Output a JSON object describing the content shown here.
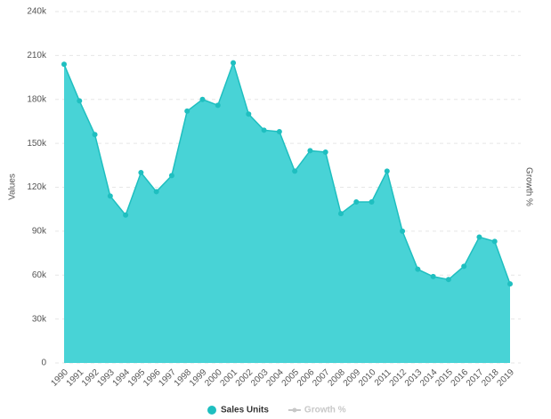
{
  "chart_data": {
    "type": "area",
    "ylabel": "Values",
    "y2label": "Growth %",
    "x": [
      "1990",
      "1991",
      "1992",
      "1993",
      "1994",
      "1995",
      "1996",
      "1997",
      "1998",
      "1999",
      "2000",
      "2001",
      "2002",
      "2003",
      "2004",
      "2005",
      "2006",
      "2007",
      "2008",
      "2009",
      "2010",
      "2011",
      "2012",
      "2013",
      "2014",
      "2015",
      "2016",
      "2017",
      "2018",
      "2019"
    ],
    "series": [
      {
        "name": "Sales Units",
        "color": "#1fbfc0",
        "fill": "#48d3d6",
        "values": [
          204000,
          179000,
          156000,
          114000,
          101000,
          130000,
          117000,
          128000,
          172000,
          180000,
          176000,
          205000,
          170000,
          159000,
          158000,
          131000,
          145000,
          144000,
          102000,
          110000,
          110000,
          131000,
          90000,
          64000,
          59000,
          57000,
          66000,
          86000,
          83000,
          54000
        ]
      },
      {
        "name": "Growth %",
        "color": "#c8c8c8",
        "axis": "y2",
        "hidden": true
      }
    ],
    "ylim": [
      0,
      240000
    ],
    "yticks": [
      0,
      {
        "value": 30000,
        "label": "30k"
      },
      {
        "value": 60000,
        "label": "60k"
      },
      {
        "value": 90000,
        "label": "90k"
      },
      {
        "value": 120000,
        "label": "120k"
      },
      {
        "value": 150000,
        "label": "150k"
      },
      {
        "value": 180000,
        "label": "180k"
      },
      {
        "value": 210000,
        "label": "210k"
      },
      {
        "value": 240000,
        "label": "240k"
      }
    ],
    "grid": true,
    "legend": "bottom"
  }
}
